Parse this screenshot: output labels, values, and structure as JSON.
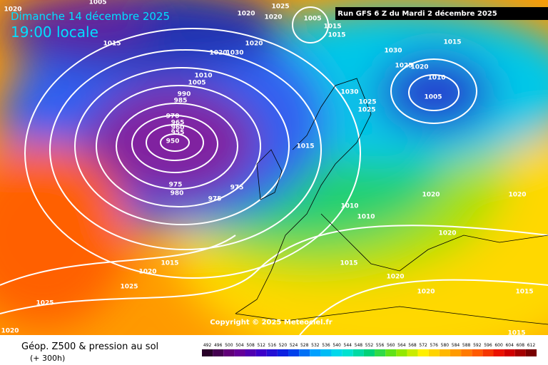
{
  "header": {
    "date": "Dimanche 14 décembre 2025",
    "time": "19:00 locale",
    "run": "Run GFS 6 Z du Mardi 2 décembre 2025"
  },
  "copyright": "Copyright © 2025 Meteociel.fr",
  "footer": {
    "title": "Géop. Z500 & pression au sol",
    "lead": "(+ 300h)"
  },
  "scale": [
    492,
    496,
    500,
    504,
    508,
    512,
    516,
    520,
    524,
    528,
    532,
    536,
    540,
    544,
    548,
    552,
    556,
    560,
    564,
    568,
    572,
    576,
    580,
    584,
    588,
    592,
    596,
    600,
    604,
    608,
    612
  ],
  "isobar_labels": [
    1005,
    1020,
    1020,
    1025,
    1005,
    1015,
    1015,
    1020,
    1020,
    1030,
    1030,
    1025,
    1020,
    1015,
    1010,
    1005,
    1030,
    1025,
    1025,
    1010,
    1005,
    990,
    985,
    970,
    965,
    960,
    955,
    950,
    975,
    980,
    975,
    975,
    1015,
    1020,
    1020,
    1020,
    1010,
    1010,
    1015,
    1020,
    1020,
    1015,
    1015,
    1020,
    1015,
    1025,
    1025,
    1020,
    1015,
    1020
  ]
}
